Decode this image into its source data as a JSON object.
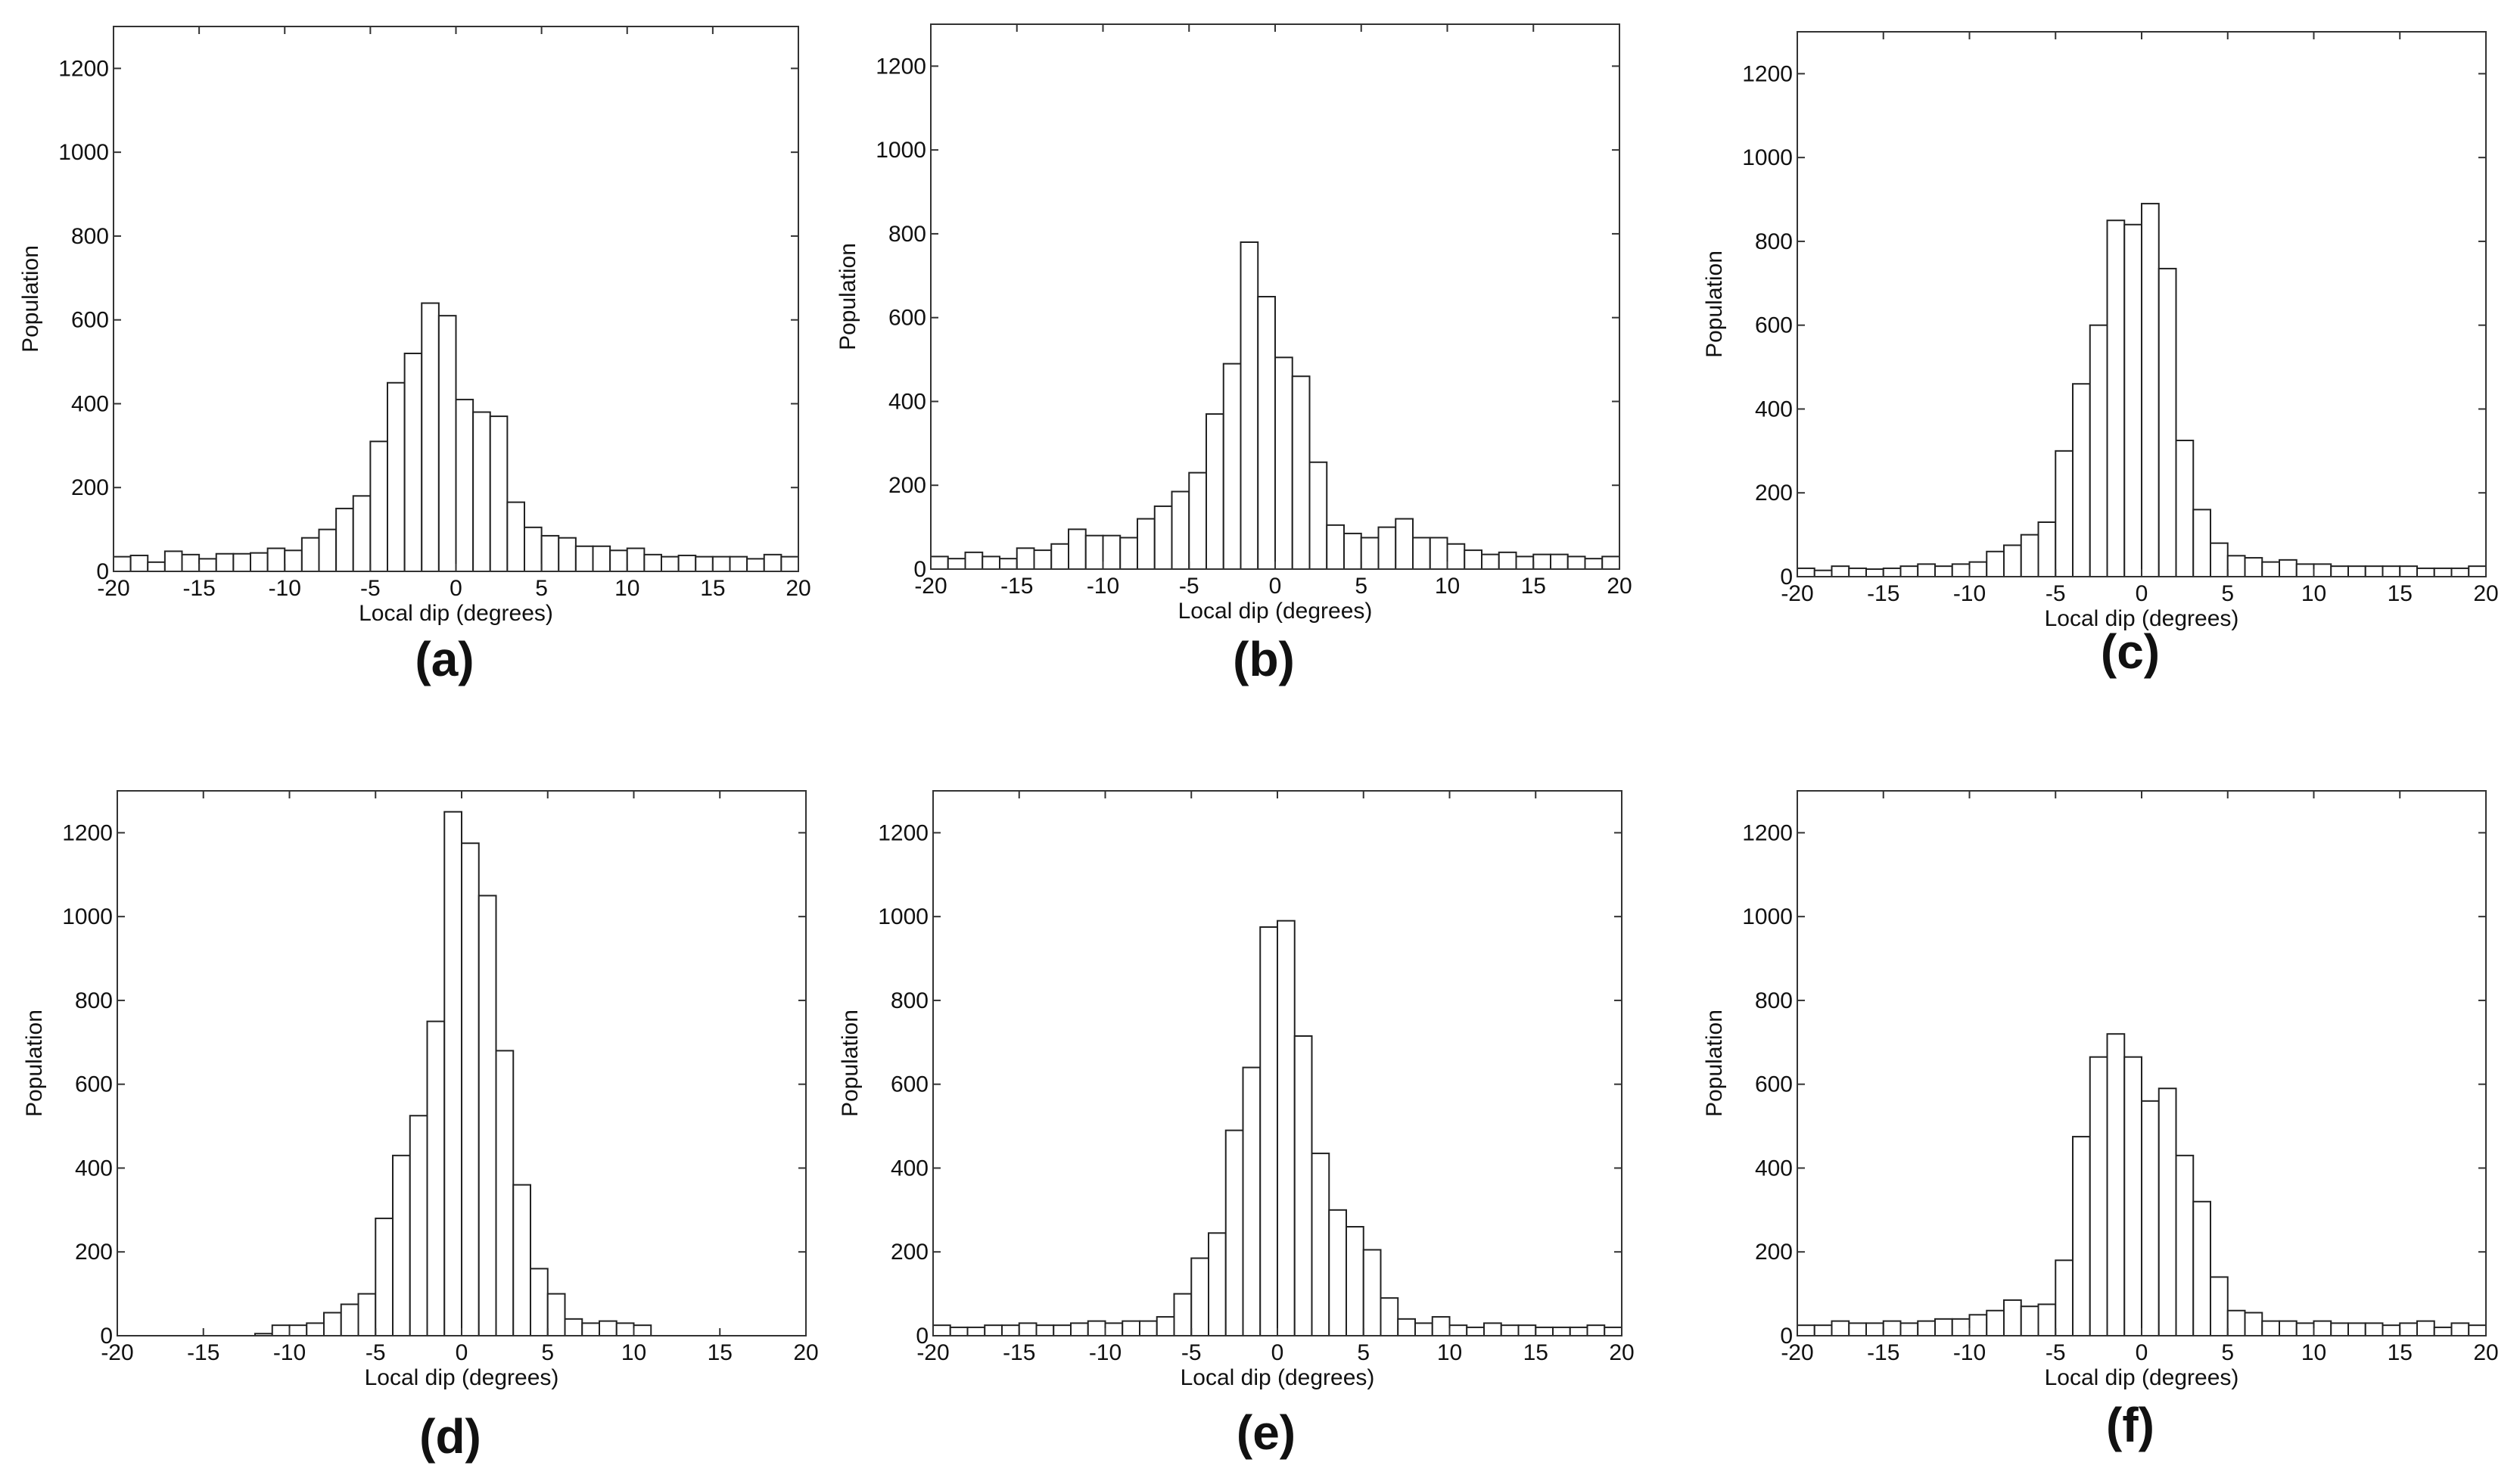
{
  "figure": {
    "chart_data": [
      {
        "type": "bar",
        "panel_label": "(a)",
        "xlabel": "Local dip (degrees)",
        "ylabel": "Population",
        "xlim": [
          -20,
          20
        ],
        "ylim": [
          0,
          1300
        ],
        "xticks": [
          "-20",
          "-15",
          "-10",
          "-5",
          "0",
          "5",
          "10",
          "15",
          "20"
        ],
        "yticks": [
          "0",
          "200",
          "400",
          "600",
          "800",
          "1000",
          "1200"
        ],
        "bin_width": 1,
        "categories": [
          "-19.5",
          "-18.5",
          "-17.5",
          "-16.5",
          "-15.5",
          "-14.5",
          "-13.5",
          "-12.5",
          "-11.5",
          "-10.5",
          "-9.5",
          "-8.5",
          "-7.5",
          "-6.5",
          "-5.5",
          "-4.5",
          "-3.5",
          "-2.5",
          "-1.5",
          "-0.5",
          "0.5",
          "1.5",
          "2.5",
          "3.5",
          "4.5",
          "5.5",
          "6.5",
          "7.5",
          "8.5",
          "9.5",
          "10.5",
          "11.5",
          "12.5",
          "13.5",
          "14.5",
          "15.5",
          "16.5",
          "17.5",
          "18.5",
          "19.5"
        ],
        "values": [
          35,
          38,
          22,
          48,
          40,
          30,
          42,
          42,
          44,
          55,
          50,
          80,
          100,
          150,
          180,
          310,
          450,
          520,
          640,
          610,
          410,
          380,
          370,
          165,
          105,
          85,
          80,
          60,
          60,
          50,
          55,
          40,
          35,
          38,
          35,
          35,
          35,
          30,
          40,
          35
        ]
      },
      {
        "type": "bar",
        "panel_label": "(b)",
        "xlabel": "Local dip (degrees)",
        "ylabel": "Population",
        "xlim": [
          -20,
          20
        ],
        "ylim": [
          0,
          1300
        ],
        "xticks": [
          "-20",
          "-15",
          "-10",
          "-5",
          "0",
          "5",
          "10",
          "15",
          "20"
        ],
        "yticks": [
          "0",
          "200",
          "400",
          "600",
          "800",
          "1000",
          "1200"
        ],
        "bin_width": 1,
        "categories": [
          "-19.5",
          "-18.5",
          "-17.5",
          "-16.5",
          "-15.5",
          "-14.5",
          "-13.5",
          "-12.5",
          "-11.5",
          "-10.5",
          "-9.5",
          "-8.5",
          "-7.5",
          "-6.5",
          "-5.5",
          "-4.5",
          "-3.5",
          "-2.5",
          "-1.5",
          "-0.5",
          "0.5",
          "1.5",
          "2.5",
          "3.5",
          "4.5",
          "5.5",
          "6.5",
          "7.5",
          "8.5",
          "9.5",
          "10.5",
          "11.5",
          "12.5",
          "13.5",
          "14.5",
          "15.5",
          "16.5",
          "17.5",
          "18.5",
          "19.5"
        ],
        "values": [
          30,
          25,
          40,
          30,
          25,
          50,
          45,
          60,
          95,
          80,
          80,
          75,
          120,
          150,
          185,
          230,
          370,
          490,
          780,
          650,
          505,
          460,
          255,
          105,
          85,
          75,
          100,
          120,
          75,
          75,
          60,
          45,
          35,
          40,
          30,
          35,
          35,
          30,
          25,
          30
        ]
      },
      {
        "type": "bar",
        "panel_label": "(c)",
        "xlabel": "Local dip (degrees)",
        "ylabel": "Population",
        "xlim": [
          -20,
          20
        ],
        "ylim": [
          0,
          1300
        ],
        "xticks": [
          "-20",
          "-15",
          "-10",
          "-5",
          "0",
          "5",
          "10",
          "15",
          "20"
        ],
        "yticks": [
          "0",
          "200",
          "400",
          "600",
          "800",
          "1000",
          "1200"
        ],
        "bin_width": 1,
        "categories": [
          "-19.5",
          "-18.5",
          "-17.5",
          "-16.5",
          "-15.5",
          "-14.5",
          "-13.5",
          "-12.5",
          "-11.5",
          "-10.5",
          "-9.5",
          "-8.5",
          "-7.5",
          "-6.5",
          "-5.5",
          "-4.5",
          "-3.5",
          "-2.5",
          "-1.5",
          "-0.5",
          "0.5",
          "1.5",
          "2.5",
          "3.5",
          "4.5",
          "5.5",
          "6.5",
          "7.5",
          "8.5",
          "9.5",
          "10.5",
          "11.5",
          "12.5",
          "13.5",
          "14.5",
          "15.5",
          "16.5",
          "17.5",
          "18.5",
          "19.5"
        ],
        "values": [
          20,
          15,
          25,
          20,
          18,
          20,
          25,
          30,
          25,
          30,
          35,
          60,
          75,
          100,
          130,
          300,
          460,
          600,
          850,
          840,
          890,
          735,
          325,
          160,
          80,
          50,
          45,
          35,
          40,
          30,
          30,
          25,
          25,
          25,
          25,
          25,
          20,
          20,
          20,
          25
        ]
      },
      {
        "type": "bar",
        "panel_label": "(d)",
        "xlabel": "Local dip (degrees)",
        "ylabel": "Population",
        "xlim": [
          -20,
          20
        ],
        "ylim": [
          0,
          1300
        ],
        "xticks": [
          "-20",
          "-15",
          "-10",
          "-5",
          "0",
          "5",
          "10",
          "15",
          "20"
        ],
        "yticks": [
          "0",
          "200",
          "400",
          "600",
          "800",
          "1000",
          "1200"
        ],
        "bin_width": 1,
        "categories": [
          "-19.5",
          "-18.5",
          "-17.5",
          "-16.5",
          "-15.5",
          "-14.5",
          "-13.5",
          "-12.5",
          "-11.5",
          "-10.5",
          "-9.5",
          "-8.5",
          "-7.5",
          "-6.5",
          "-5.5",
          "-4.5",
          "-3.5",
          "-2.5",
          "-1.5",
          "-0.5",
          "0.5",
          "1.5",
          "2.5",
          "3.5",
          "4.5",
          "5.5",
          "6.5",
          "7.5",
          "8.5",
          "9.5",
          "10.5",
          "11.5",
          "12.5",
          "13.5",
          "14.5",
          "15.5",
          "16.5",
          "17.5",
          "18.5",
          "19.5"
        ],
        "values": [
          0,
          0,
          0,
          0,
          0,
          0,
          0,
          0,
          5,
          25,
          25,
          30,
          55,
          75,
          100,
          280,
          430,
          525,
          750,
          1250,
          1175,
          1050,
          680,
          360,
          160,
          100,
          40,
          30,
          35,
          30,
          25,
          0,
          0,
          0,
          0,
          0,
          0,
          0,
          0,
          0
        ]
      },
      {
        "type": "bar",
        "panel_label": "(e)",
        "xlabel": "Local dip (degrees)",
        "ylabel": "Population",
        "xlim": [
          -20,
          20
        ],
        "ylim": [
          0,
          1300
        ],
        "xticks": [
          "-20",
          "-15",
          "-10",
          "-5",
          "0",
          "5",
          "10",
          "15",
          "20"
        ],
        "yticks": [
          "0",
          "200",
          "400",
          "600",
          "800",
          "1000",
          "1200"
        ],
        "bin_width": 1,
        "categories": [
          "-19.5",
          "-18.5",
          "-17.5",
          "-16.5",
          "-15.5",
          "-14.5",
          "-13.5",
          "-12.5",
          "-11.5",
          "-10.5",
          "-9.5",
          "-8.5",
          "-7.5",
          "-6.5",
          "-5.5",
          "-4.5",
          "-3.5",
          "-2.5",
          "-1.5",
          "-0.5",
          "0.5",
          "1.5",
          "2.5",
          "3.5",
          "4.5",
          "5.5",
          "6.5",
          "7.5",
          "8.5",
          "9.5",
          "10.5",
          "11.5",
          "12.5",
          "13.5",
          "14.5",
          "15.5",
          "16.5",
          "17.5",
          "18.5",
          "19.5"
        ],
        "values": [
          25,
          20,
          20,
          25,
          25,
          30,
          25,
          25,
          30,
          35,
          30,
          35,
          35,
          45,
          100,
          185,
          245,
          490,
          640,
          975,
          990,
          715,
          435,
          300,
          260,
          205,
          90,
          40,
          30,
          45,
          25,
          20,
          30,
          25,
          25,
          20,
          20,
          20,
          25,
          20
        ]
      },
      {
        "type": "bar",
        "panel_label": "(f)",
        "xlabel": "Local dip (degrees)",
        "ylabel": "Population",
        "xlim": [
          -20,
          20
        ],
        "ylim": [
          0,
          1300
        ],
        "xticks": [
          "-20",
          "-15",
          "-10",
          "-5",
          "0",
          "5",
          "10",
          "15",
          "20"
        ],
        "yticks": [
          "0",
          "200",
          "400",
          "600",
          "800",
          "1000",
          "1200"
        ],
        "bin_width": 1,
        "categories": [
          "-19.5",
          "-18.5",
          "-17.5",
          "-16.5",
          "-15.5",
          "-14.5",
          "-13.5",
          "-12.5",
          "-11.5",
          "-10.5",
          "-9.5",
          "-8.5",
          "-7.5",
          "-6.5",
          "-5.5",
          "-4.5",
          "-3.5",
          "-2.5",
          "-1.5",
          "-0.5",
          "0.5",
          "1.5",
          "2.5",
          "3.5",
          "4.5",
          "5.5",
          "6.5",
          "7.5",
          "8.5",
          "9.5",
          "10.5",
          "11.5",
          "12.5",
          "13.5",
          "14.5",
          "15.5",
          "16.5",
          "17.5",
          "18.5",
          "19.5"
        ],
        "values": [
          25,
          25,
          35,
          30,
          30,
          35,
          30,
          35,
          40,
          40,
          50,
          60,
          85,
          70,
          75,
          180,
          475,
          665,
          720,
          665,
          560,
          590,
          430,
          320,
          140,
          60,
          55,
          35,
          35,
          30,
          35,
          30,
          30,
          30,
          25,
          30,
          35,
          20,
          30,
          25
        ]
      }
    ]
  }
}
